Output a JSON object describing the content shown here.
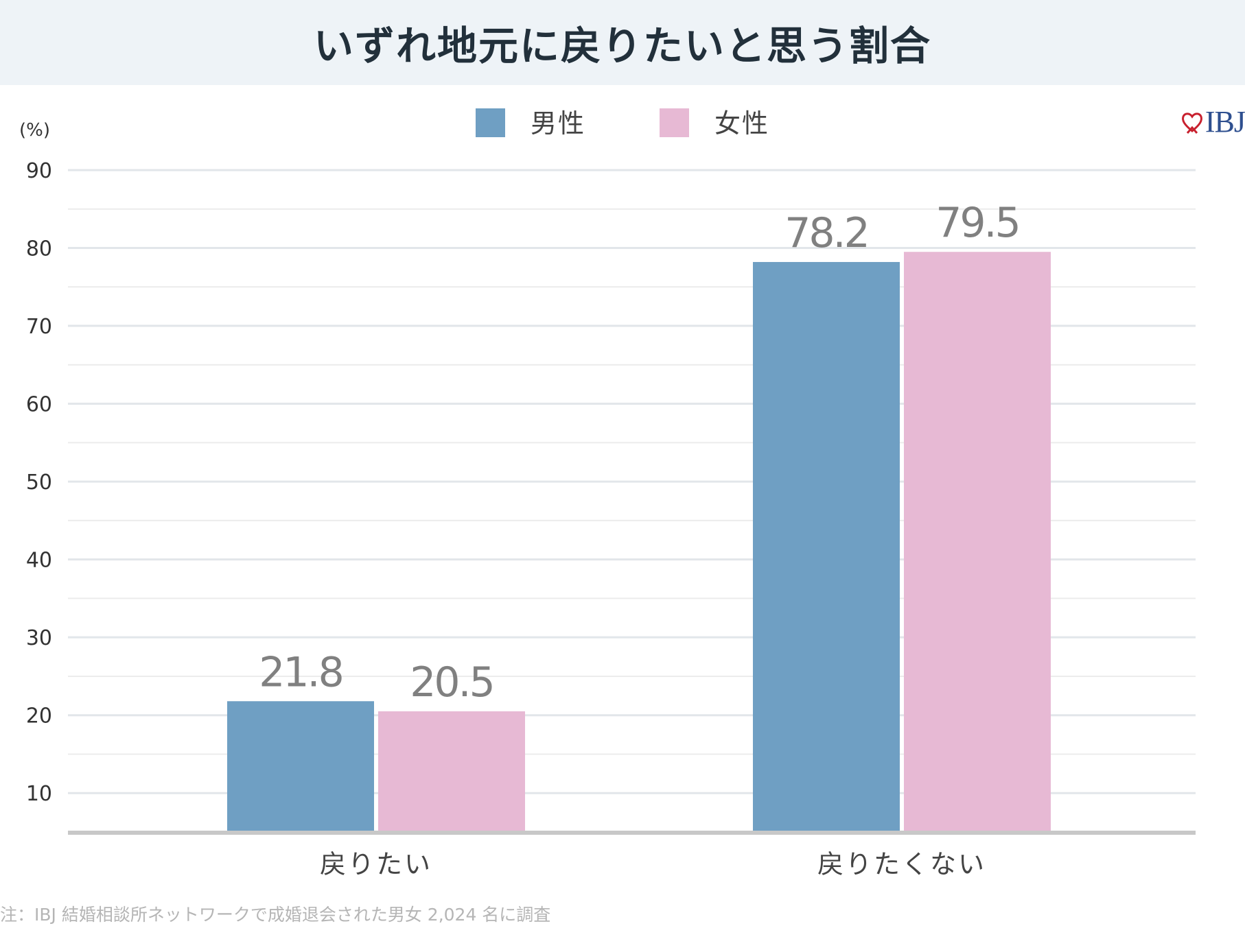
{
  "title": "いずれ地元に戻りたいと思う割合",
  "brand": {
    "text": "IBJ",
    "heart_color": "#c8202e",
    "text_color": "#2e4f8f"
  },
  "footnote": "注：IBJ 結婚相談所ネットワークで成婚退会された男女 2,024 名に調査",
  "chart_data": {
    "type": "bar",
    "title": "いずれ地元に戻りたいと思う割合",
    "ylabel": "(%)",
    "xlabel": "",
    "ylim": [
      5,
      90
    ],
    "yticks": [
      10,
      20,
      30,
      40,
      50,
      60,
      70,
      80,
      90
    ],
    "grid": true,
    "legend": "top-center",
    "categories": [
      "戻りたい",
      "戻りたくない"
    ],
    "series": [
      {
        "name": "男性",
        "color": "#6f9fc3",
        "values": [
          21.8,
          78.2
        ],
        "labels": [
          "21.8",
          "78.2"
        ]
      },
      {
        "name": "女性",
        "color": "#e7b9d4",
        "values": [
          20.5,
          79.5
        ],
        "labels": [
          "20.5",
          "79.5"
        ]
      }
    ]
  }
}
